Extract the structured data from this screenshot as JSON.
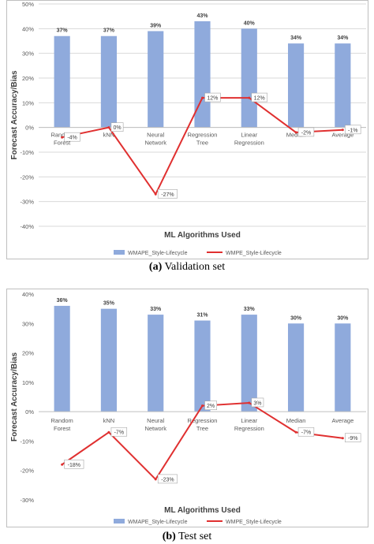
{
  "captions": {
    "a_letter": "(a)",
    "a_text": "Validation set",
    "b_letter": "(b)",
    "b_text": "Test set"
  },
  "colors": {
    "bar": "#8faadc",
    "line": "#e03030",
    "grid": "#d9d9d9",
    "axis_text": "#595959"
  },
  "chart_data": [
    {
      "type": "bar",
      "categories": [
        [
          "Random",
          "Forest"
        ],
        [
          "kNN"
        ],
        [
          "Neural",
          "Network"
        ],
        [
          "Regression",
          "Tree"
        ],
        [
          "Linear",
          "Regression"
        ],
        [
          "Median"
        ],
        [
          "Average"
        ]
      ],
      "series": [
        {
          "name": "WMAPE_Style-Lifecycle",
          "type": "bar",
          "values": [
            37,
            37,
            39,
            43,
            40,
            34,
            34
          ],
          "labels": [
            "37%",
            "37%",
            "39%",
            "43%",
            "40%",
            "34%",
            "34%"
          ]
        },
        {
          "name": "WMPE_Style-Lifecycle",
          "type": "line",
          "values": [
            -4,
            0,
            -27,
            12,
            12,
            -2,
            -1
          ],
          "labels": [
            "-4%",
            "0%",
            "-27%",
            "12%",
            "12%",
            "-2%",
            "-1%"
          ]
        }
      ],
      "ylabel": "Forecast Accuracy/Bias",
      "xlabel": "ML Algorithms Used",
      "ylim": [
        -40,
        50
      ],
      "yticks": [
        "-40%",
        "-30%",
        "-20%",
        "-10%",
        "0%",
        "10%",
        "20%",
        "30%",
        "40%",
        "50%"
      ],
      "grid": true,
      "legend": "bottom"
    },
    {
      "type": "bar",
      "categories": [
        [
          "Random",
          "Forest"
        ],
        [
          "kNN"
        ],
        [
          "Neural",
          "Network"
        ],
        [
          "Regression",
          "Tree"
        ],
        [
          "Linear",
          "Regression"
        ],
        [
          "Median"
        ],
        [
          "Average"
        ]
      ],
      "series": [
        {
          "name": "WMAPE_Style-Lifecycle",
          "type": "bar",
          "values": [
            36,
            35,
            33,
            31,
            33,
            30,
            30
          ],
          "labels": [
            "36%",
            "35%",
            "33%",
            "31%",
            "33%",
            "30%",
            "30%"
          ]
        },
        {
          "name": "WMPE_Style-Lifecycle",
          "type": "line",
          "values": [
            -18,
            -7,
            -23,
            2,
            3,
            -7,
            -9
          ],
          "labels": [
            "-18%",
            "-7%",
            "-23%",
            "2%",
            "3%",
            "-7%",
            "-9%"
          ]
        }
      ],
      "ylabel": "Forecast Accuracy/Bias",
      "xlabel": "ML Algorithms Used",
      "ylim": [
        -30,
        40
      ],
      "yticks": [
        "-30%",
        "-20%",
        "-10%",
        "0%",
        "10%",
        "20%",
        "30%",
        "40%"
      ],
      "grid": false,
      "legend": "bottom"
    }
  ]
}
